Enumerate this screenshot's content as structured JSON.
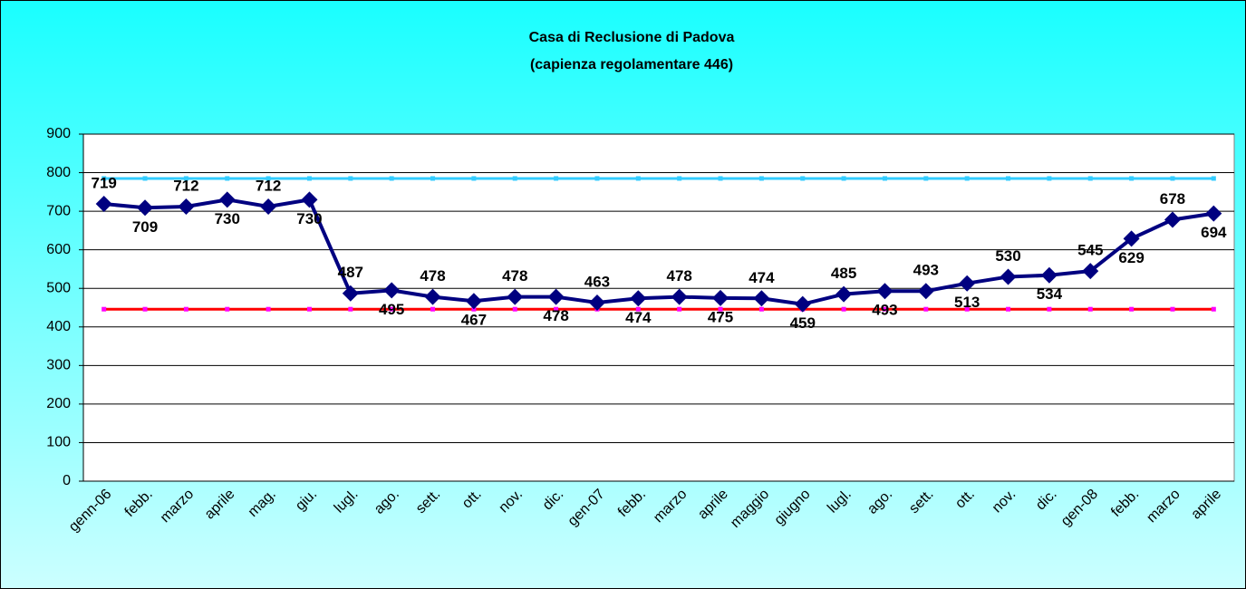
{
  "chart_data": {
    "type": "line",
    "title": "Casa di Reclusione di Padova",
    "subtitle": "(capienza regolamentare 446)",
    "categories": [
      "genn-06",
      "febb.",
      "marzo",
      "aprile",
      "mag.",
      "giu.",
      "lugl.",
      "ago.",
      "sett.",
      "ott.",
      "nov.",
      "dic.",
      "gen-07",
      "febb.",
      "marzo",
      "aprile",
      "maggio",
      "giugno",
      "lugl.",
      "ago.",
      "sett.",
      "ott.",
      "nov.",
      "dic.",
      "gen-08",
      "febb.",
      "marzo",
      "aprile"
    ],
    "series": [
      {
        "color": "#000080",
        "marker": "diamond",
        "data_labels": true,
        "values": [
          719,
          709,
          712,
          730,
          712,
          730,
          487,
          495,
          478,
          467,
          478,
          478,
          463,
          474,
          478,
          475,
          474,
          459,
          485,
          493,
          493,
          513,
          530,
          534,
          545,
          629,
          678,
          694
        ]
      },
      {
        "color": "#33ccff",
        "marker_color": "#33ccff",
        "values": [
          785,
          785,
          785,
          785,
          785,
          785,
          785,
          785,
          785,
          785,
          785,
          785,
          785,
          785,
          785,
          785,
          785,
          785,
          785,
          785,
          785,
          785,
          785,
          785,
          785,
          785,
          785,
          785
        ]
      },
      {
        "color": "#ff0000",
        "marker_color": "#ff00ff",
        "values": [
          446,
          446,
          446,
          446,
          446,
          446,
          446,
          446,
          446,
          446,
          446,
          446,
          446,
          446,
          446,
          446,
          446,
          446,
          446,
          446,
          446,
          446,
          446,
          446,
          446,
          446,
          446,
          446
        ]
      }
    ],
    "ylim": [
      0,
      900
    ],
    "yticks": [
      0,
      100,
      200,
      300,
      400,
      500,
      600,
      700,
      800,
      900
    ],
    "grid": true
  }
}
